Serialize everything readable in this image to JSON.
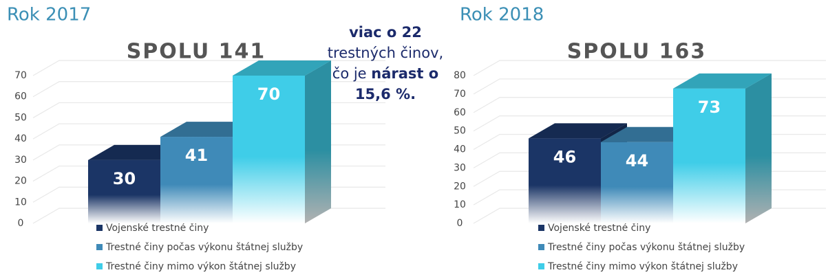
{
  "chart_data": [
    {
      "type": "bar",
      "heading": "Rok 2017",
      "title": "SPOLU 141",
      "series": [
        {
          "name": "Vojenské trestné činy",
          "color": "#1b3566",
          "values": [
            30
          ]
        },
        {
          "name": "Trestné činy počas výkonu štátnej služby",
          "color": "#3f8ab8",
          "values": [
            41
          ]
        },
        {
          "name": "Trestné činy mimo výkon štátnej služby",
          "color": "#3fcde8",
          "values": [
            70
          ]
        }
      ],
      "ylim": [
        0,
        70
      ],
      "yticks": [
        0,
        10,
        20,
        30,
        40,
        50,
        60,
        70
      ],
      "grid": true
    },
    {
      "type": "bar",
      "heading": "Rok 2018",
      "title": "SPOLU 163",
      "series": [
        {
          "name": "Vojenské trestné činy",
          "color": "#1b3566",
          "values": [
            46
          ]
        },
        {
          "name": "Trestné činy počas výkonu štátnej služby",
          "color": "#3f8ab8",
          "values": [
            44
          ]
        },
        {
          "name": "Trestné činy mimo výkon štátnej služby",
          "color": "#3fcde8",
          "values": [
            73
          ]
        }
      ],
      "ylim": [
        0,
        80
      ],
      "yticks": [
        0,
        10,
        20,
        30,
        40,
        50,
        60,
        70,
        80
      ],
      "grid": true
    }
  ],
  "annotation": [
    [
      {
        "text": "viac o 22",
        "bold": true
      }
    ],
    [
      {
        "text": "trestných činov,",
        "bold": false
      }
    ],
    [
      {
        "text": "čo je ",
        "bold": false
      },
      {
        "text": "nárast o",
        "bold": true
      }
    ],
    [
      {
        "text": "15,6 %.",
        "bold": true
      }
    ]
  ]
}
